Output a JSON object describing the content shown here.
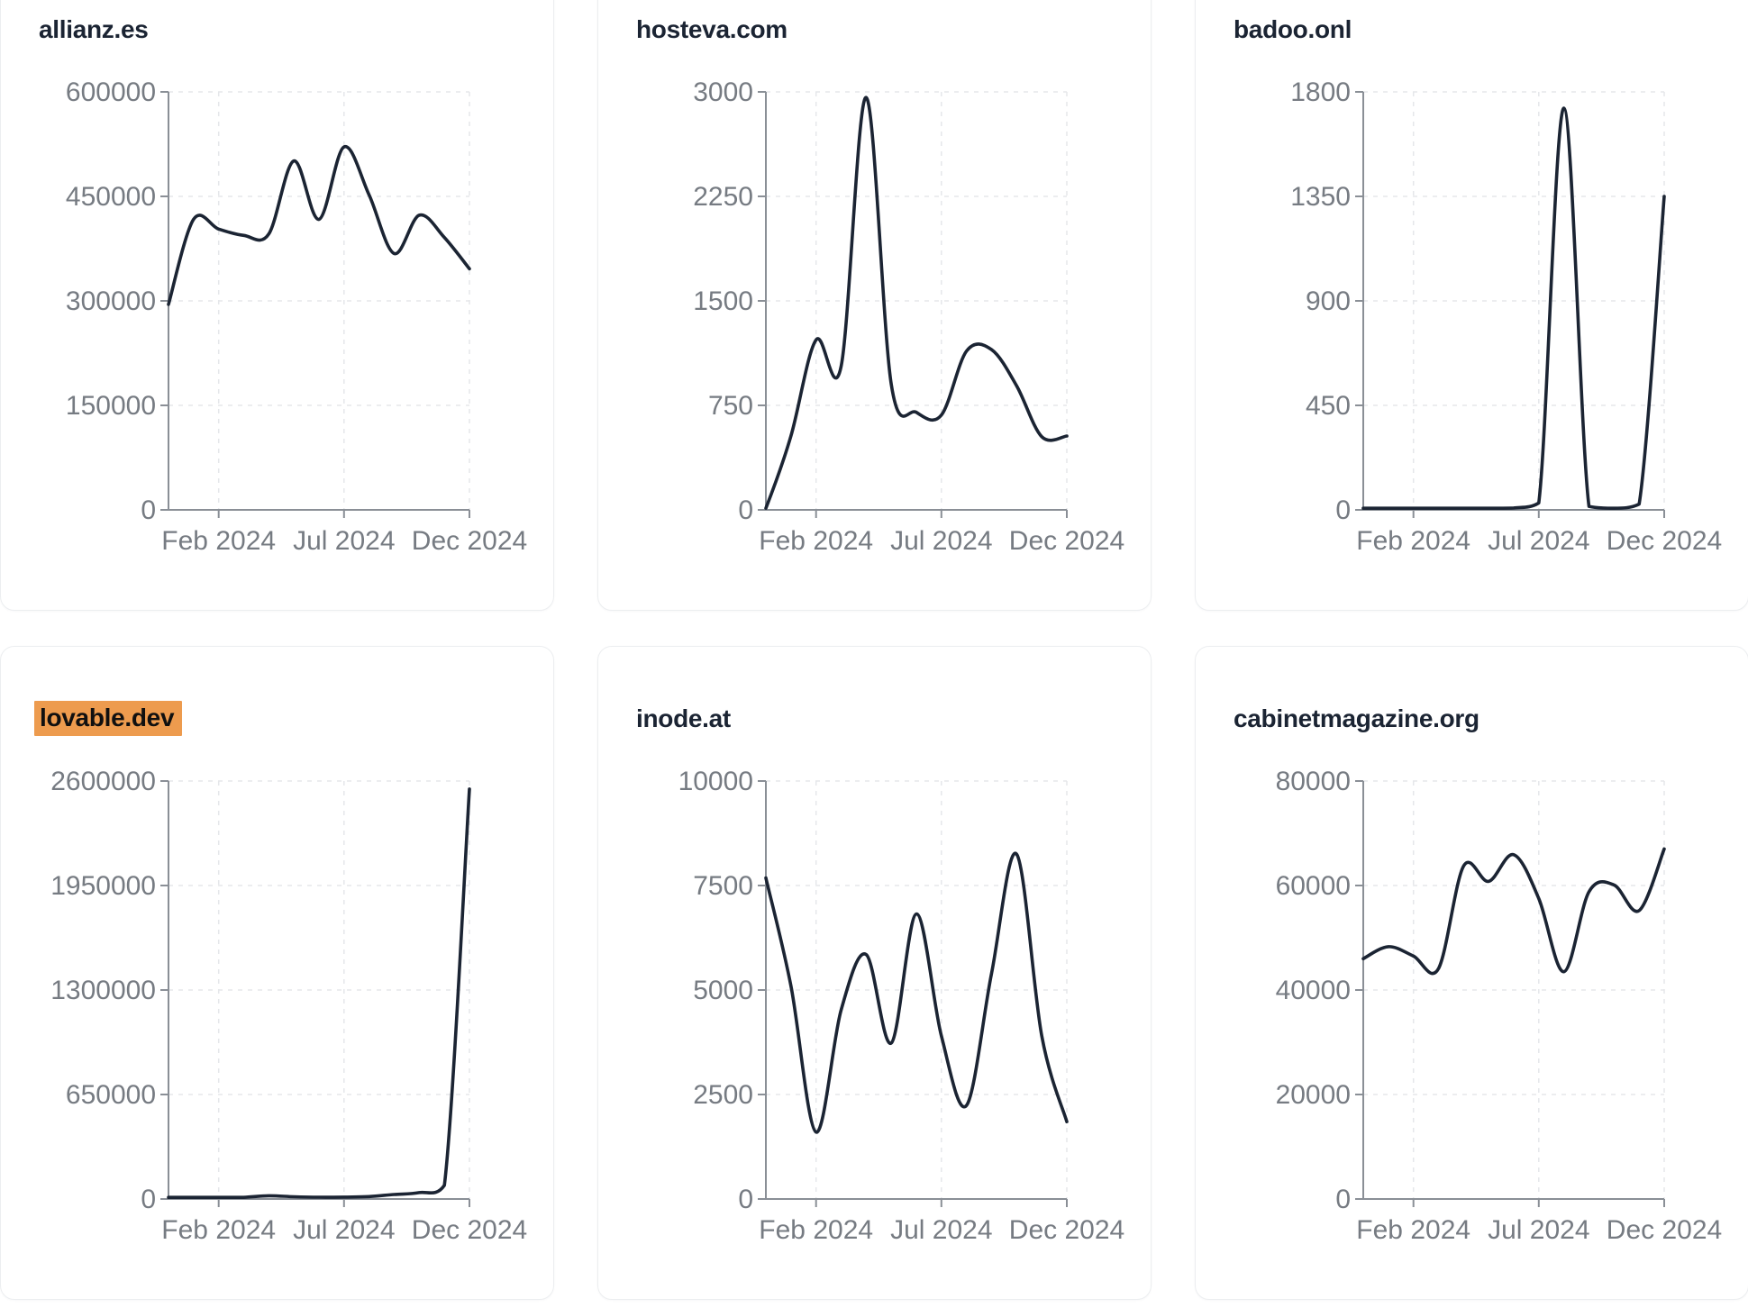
{
  "app": {
    "background": "#ffffff"
  },
  "colors": {
    "line": "#1b2433",
    "title": "#1b2433",
    "axis": "#8a8f96",
    "tick_label": "#767b82",
    "grid": "#e5e7ea",
    "card_border": "#eceef0",
    "card_bg": "#ffffff",
    "highlight_bg": "#ED9B4E",
    "highlight_text": "#101010"
  },
  "x_tick_labels": [
    "Feb 2024",
    "Jul 2024",
    "Dec 2024"
  ],
  "x_tick_month_indices": [
    2,
    7,
    12
  ],
  "months": [
    "Dec 2023",
    "Jan 2024",
    "Feb 2024",
    "Mar 2024",
    "Apr 2024",
    "May 2024",
    "Jun 2024",
    "Jul 2024",
    "Aug 2024",
    "Sep 2024",
    "Oct 2024",
    "Nov 2024",
    "Dec 2024"
  ],
  "chart_data": [
    {
      "type": "line",
      "title": "allianz.es",
      "highlighted": false,
      "xlabel": "",
      "ylabel": "",
      "legend": "none",
      "grid": "dashed",
      "ylim": [
        0,
        600000
      ],
      "y_ticks": [
        0,
        150000,
        300000,
        450000,
        600000
      ],
      "values": [
        295000,
        417000,
        403000,
        394000,
        396000,
        501000,
        417000,
        521000,
        452000,
        368000,
        423000,
        391000,
        346000
      ]
    },
    {
      "type": "line",
      "title": "hosteva.com",
      "highlighted": false,
      "xlabel": "",
      "ylabel": "",
      "legend": "none",
      "grid": "dashed",
      "ylim": [
        0,
        3000
      ],
      "y_ticks": [
        0,
        750,
        1500,
        2250,
        3000
      ],
      "values": [
        0,
        530,
        1220,
        1030,
        2960,
        900,
        700,
        680,
        1140,
        1150,
        890,
        525,
        530
      ]
    },
    {
      "type": "line",
      "title": "badoo.onl",
      "highlighted": false,
      "xlabel": "",
      "ylabel": "",
      "legend": "none",
      "grid": "dashed",
      "ylim": [
        0,
        1800
      ],
      "y_ticks": [
        0,
        450,
        900,
        1350,
        1800
      ],
      "values": [
        3,
        3,
        3,
        4,
        4,
        5,
        8,
        30,
        1730,
        15,
        5,
        25,
        1350
      ]
    },
    {
      "type": "line",
      "title": "lovable.dev",
      "highlighted": true,
      "xlabel": "",
      "ylabel": "",
      "legend": "none",
      "grid": "dashed",
      "ylim": [
        0,
        2600000
      ],
      "y_ticks": [
        0,
        650000,
        1300000,
        1950000,
        2600000
      ],
      "values": [
        5000,
        6000,
        7000,
        10000,
        20000,
        14000,
        11000,
        12000,
        15000,
        28000,
        40000,
        85000,
        2550000
      ]
    },
    {
      "type": "line",
      "title": "inode.at",
      "highlighted": false,
      "xlabel": "",
      "ylabel": "",
      "legend": "none",
      "grid": "dashed",
      "ylim": [
        0,
        10000
      ],
      "y_ticks": [
        0,
        2500,
        5000,
        7500,
        10000
      ],
      "values": [
        7680,
        5100,
        1600,
        4520,
        5850,
        3730,
        6820,
        3900,
        2240,
        5400,
        8250,
        3900,
        1850
      ]
    },
    {
      "type": "line",
      "title": "cabinetmagazine.org",
      "highlighted": false,
      "xlabel": "",
      "ylabel": "",
      "legend": "none",
      "grid": "dashed",
      "ylim": [
        0,
        80000
      ],
      "y_ticks": [
        0,
        20000,
        40000,
        60000,
        80000
      ],
      "values": [
        46000,
        48300,
        46500,
        44100,
        63700,
        60800,
        65900,
        57500,
        43500,
        58800,
        60100,
        55200,
        67000
      ]
    }
  ]
}
